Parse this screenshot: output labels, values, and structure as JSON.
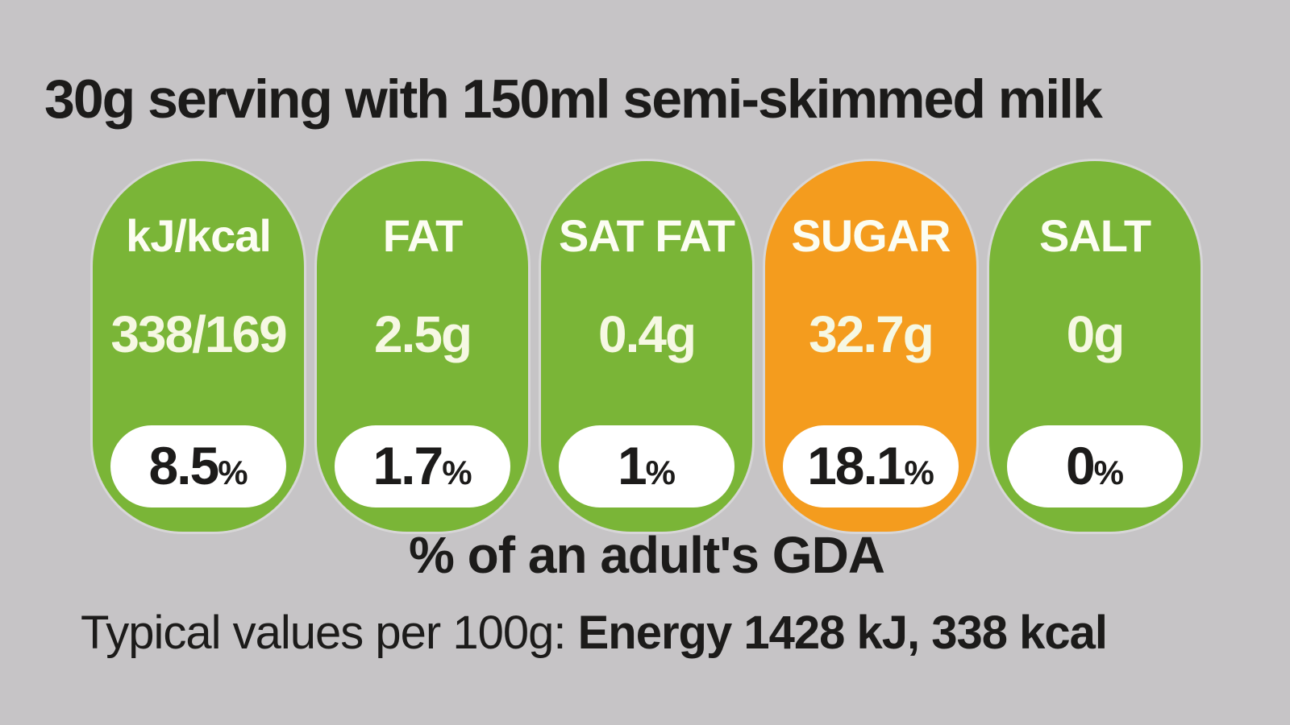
{
  "title": "30g serving with 150ml semi-skimmed milk",
  "colors": {
    "background": "#C6C4C6",
    "green": "#7AB537",
    "orange": "#F49C1E",
    "badge_bg": "#FFFFFF",
    "label_text": "#FCFDF2",
    "value_text": "#F6F8E3",
    "dark_text": "#1C1B1A"
  },
  "percent_suffix": "%",
  "pills": [
    {
      "label": "kJ/kcal",
      "value": "338/169",
      "percent": "8.5",
      "color": "green"
    },
    {
      "label": "FAT",
      "value": "2.5g",
      "percent": "1.7",
      "color": "green"
    },
    {
      "label": "SAT FAT",
      "value": "0.4g",
      "percent": "1",
      "color": "green"
    },
    {
      "label": "SUGAR",
      "value": "32.7g",
      "percent": "18.1",
      "color": "orange"
    },
    {
      "label": "SALT",
      "value": "0g",
      "percent": "0",
      "color": "green"
    }
  ],
  "gda_caption": "% of an adult's GDA",
  "footer": {
    "prefix": "Typical values per 100g: ",
    "bold": "Energy 1428 kJ, 338 kcal"
  }
}
